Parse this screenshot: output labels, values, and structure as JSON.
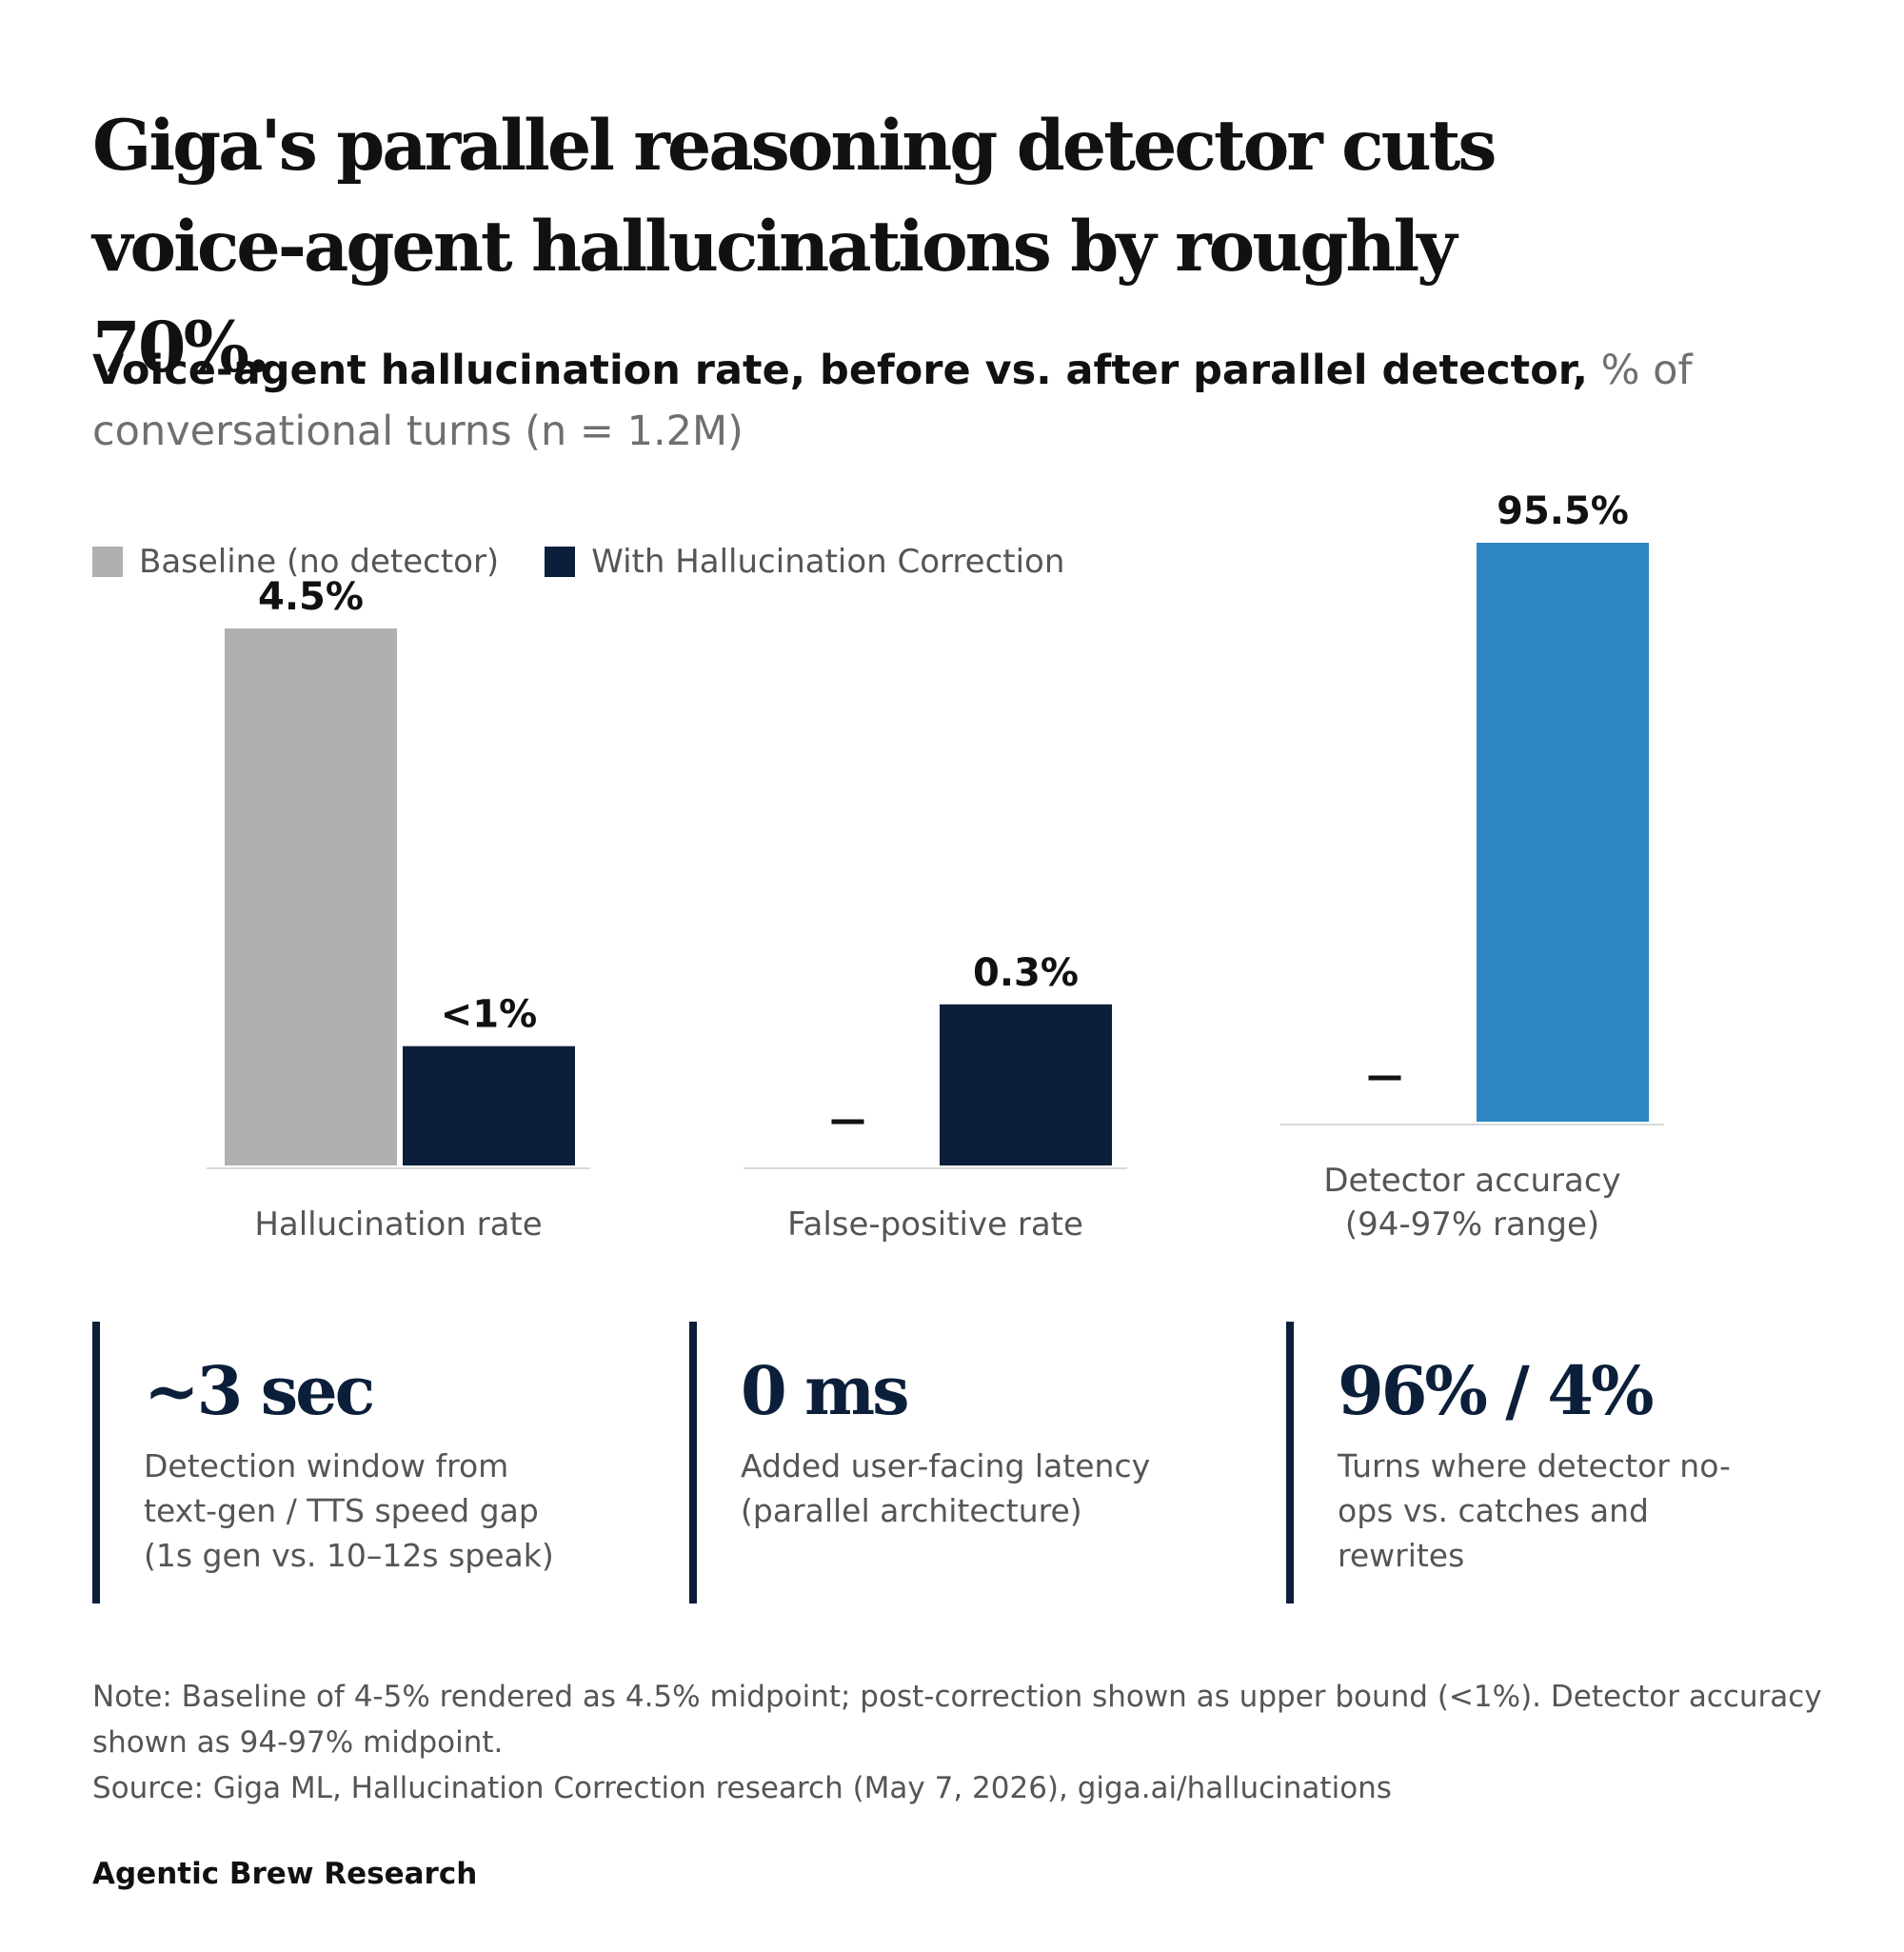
{
  "title": "Giga's parallel reasoning detector cuts voice-agent hallucinations by roughly 70%.",
  "subtitle": {
    "lead": "Voice-agent hallucination rate, before vs. after parallel detector,",
    "rest": " % of conversational turns (n = 1.2M)"
  },
  "legend": [
    {
      "label": "Baseline (no detector)",
      "color": "#b0b0b0"
    },
    {
      "label": "With Hallucination Correction",
      "color": "#0c1f3a"
    }
  ],
  "chart_data": {
    "type": "bar",
    "categories": [
      "Hallucination rate",
      "False-positive rate",
      "Detector accuracy\n(94-97% range)"
    ],
    "series": [
      {
        "name": "Baseline (no detector)",
        "color": "#b0b0b0",
        "values": [
          4.5,
          null,
          null
        ],
        "labels": [
          "4.5%",
          "–",
          "–"
        ]
      },
      {
        "name": "With Hallucination Correction",
        "color": "#0c1f3a",
        "values": [
          1.0,
          0.3,
          95.5
        ],
        "labels": [
          "<1%",
          "0.3%",
          "95.5%"
        ]
      }
    ],
    "highlight_color": "#2e86c1",
    "panels": [
      {
        "category": "Hallucination rate",
        "ylim": [
          0,
          4.5
        ]
      },
      {
        "category": "False-positive rate",
        "ylim": [
          0,
          1.0
        ]
      },
      {
        "category": "Detector accuracy\n(94-97% range)",
        "ylim": [
          0,
          95.5
        ]
      }
    ]
  },
  "stats": [
    {
      "value": "~3 sec",
      "description": "Detection window from text-gen / TTS speed gap (1s gen vs. 10–12s speak)"
    },
    {
      "value": "0 ms",
      "description": "Added user-facing latency (parallel architecture)"
    },
    {
      "value": "96% / 4%",
      "description": "Turns where detector no-ops vs. catches and rewrites"
    }
  ],
  "notes": {
    "note": "Note: Baseline of 4-5% rendered as 4.5% midpoint; post-correction shown as upper bound (<1%). Detector accuracy shown as 94-97% midpoint.",
    "source": "Source: Giga ML, Hallucination Correction research (May 7, 2026), giga.ai/hallucinations"
  },
  "brand": "Agentic Brew Research"
}
